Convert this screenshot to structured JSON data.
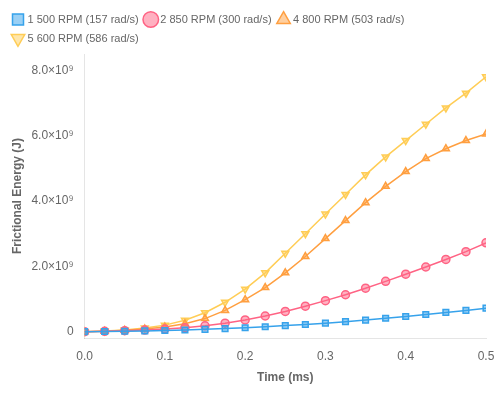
{
  "chart_data": {
    "type": "line",
    "xlabel": "Time (ms)",
    "ylabel": "Frictional Energy (J)",
    "x": [
      0.0,
      0.025,
      0.05,
      0.075,
      0.1,
      0.125,
      0.15,
      0.175,
      0.2,
      0.225,
      0.25,
      0.275,
      0.3,
      0.325,
      0.35,
      0.375,
      0.4,
      0.425,
      0.45,
      0.475,
      0.5
    ],
    "series": [
      {
        "name": "1 500 RPM (157 rad/s)",
        "marker": "square",
        "values": [
          0,
          5000000.0,
          12000000.0,
          22000000.0,
          35000000.0,
          52000000.0,
          72000000.0,
          95000000.0,
          120000000.0,
          150000000.0,
          185000000.0,
          220000000.0,
          260000000.0,
          305000000.0,
          355000000.0,
          410000000.0,
          465000000.0,
          525000000.0,
          590000000.0,
          650000000.0,
          720000000.0
        ]
      },
      {
        "name": "2 850 RPM (300 rad/s)",
        "marker": "circle",
        "values": [
          0,
          10000000.0,
          30000000.0,
          50000000.0,
          80000000.0,
          120000000.0,
          180000000.0,
          260000000.0,
          360000000.0,
          480000000.0,
          620000000.0,
          780000000.0,
          950000000.0,
          1130000000.0,
          1330000000.0,
          1540000000.0,
          1760000000.0,
          1980000000.0,
          2210000000.0,
          2450000000.0,
          2720000000.0
        ]
      },
      {
        "name": "4 800 RPM (503 rad/s)",
        "marker": "triangle_up",
        "values": [
          0,
          15000000.0,
          40000000.0,
          80000000.0,
          140000000.0,
          240000000.0,
          400000000.0,
          650000000.0,
          980000000.0,
          1350000000.0,
          1800000000.0,
          2300000000.0,
          2850000000.0,
          3400000000.0,
          3950000000.0,
          4450000000.0,
          4900000000.0,
          5300000000.0,
          5600000000.0,
          5850000000.0,
          6050000000.0
        ]
      },
      {
        "name": "5 600 RPM (586 rad/s)",
        "marker": "triangle_down",
        "values": [
          0,
          20000000.0,
          50000000.0,
          110000000.0,
          200000000.0,
          350000000.0,
          580000000.0,
          900000000.0,
          1300000000.0,
          1800000000.0,
          2400000000.0,
          3000000000.0,
          3600000000.0,
          4200000000.0,
          4800000000.0,
          5350000000.0,
          5850000000.0,
          6350000000.0,
          6850000000.0,
          7300000000.0,
          7800000000.0
        ]
      }
    ],
    "xlim": [
      0.0,
      0.5
    ],
    "xticks": [
      {
        "value": 0.0,
        "label": "0.0"
      },
      0.1,
      0.2,
      0.3,
      0.4,
      0.5
    ],
    "ylim": [
      -200000000.0,
      8500000000.0
    ],
    "yticks": [
      0,
      {
        "value": 2000000000.0,
        "label": "2.0×10⁹"
      },
      {
        "value": 4000000000.0,
        "label": "4.0×10⁹"
      },
      {
        "value": 6000000000.0,
        "label": "6.0×10⁹"
      },
      {
        "value": 8000000000.0,
        "label": "8.0×10⁹"
      }
    ],
    "legend": "upper left",
    "grid": false
  }
}
